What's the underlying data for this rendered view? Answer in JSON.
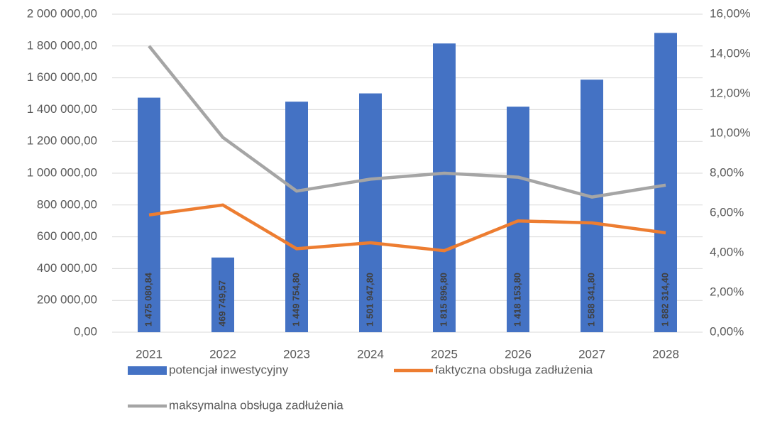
{
  "chart_data": {
    "type": "bar",
    "categories": [
      "2021",
      "2022",
      "2023",
      "2024",
      "2025",
      "2026",
      "2027",
      "2028"
    ],
    "series": [
      {
        "name": "potencjał inwestycyjny",
        "type": "bar",
        "color": "#4472c4",
        "values": [
          1475080.84,
          469749.57,
          1449754.8,
          1501947.8,
          1815896.8,
          1418153.8,
          1588341.8,
          1882314.4
        ],
        "value_labels": [
          "1 475 080,84",
          "469 749,57",
          "1 449 754,80",
          "1 501 947,80",
          "1 815 896,80",
          "1 418 153,80",
          "1 588 341,80",
          "1 882 314,40"
        ]
      },
      {
        "name": "faktyczna obsługa zadłużenia",
        "type": "line",
        "axis": "y2",
        "color": "#ed7d31",
        "values": [
          5.9,
          6.4,
          4.2,
          4.5,
          4.1,
          5.6,
          5.5,
          5.0
        ]
      },
      {
        "name": "maksymalna obsługa zadłużenia",
        "type": "line",
        "axis": "y2",
        "color": "#a5a5a5",
        "values": [
          14.4,
          9.8,
          7.1,
          7.7,
          8.0,
          7.8,
          6.8,
          7.4
        ]
      }
    ],
    "ylim": [
      0,
      2000000
    ],
    "yticks": [
      {
        "value": 0,
        "label": "0,00"
      },
      {
        "value": 200000,
        "label": "200 000,00"
      },
      {
        "value": 400000,
        "label": "400 000,00"
      },
      {
        "value": 600000,
        "label": "600 000,00"
      },
      {
        "value": 800000,
        "label": "800 000,00"
      },
      {
        "value": 1000000,
        "label": "1 000 000,00"
      },
      {
        "value": 1200000,
        "label": "1 200 000,00"
      },
      {
        "value": 1400000,
        "label": "1 400 000,00"
      },
      {
        "value": 1600000,
        "label": "1 600 000,00"
      },
      {
        "value": 1800000,
        "label": "1 800 000,00"
      },
      {
        "value": 2000000,
        "label": "2 000 000,00"
      }
    ],
    "y2lim": [
      0,
      16
    ],
    "y2ticks": [
      {
        "value": 0,
        "label": "0,00%"
      },
      {
        "value": 2,
        "label": "2,00%"
      },
      {
        "value": 4,
        "label": "4,00%"
      },
      {
        "value": 6,
        "label": "6,00%"
      },
      {
        "value": 8,
        "label": "8,00%"
      },
      {
        "value": 10,
        "label": "10,00%"
      },
      {
        "value": 12,
        "label": "12,00%"
      },
      {
        "value": 14,
        "label": "14,00%"
      },
      {
        "value": 16,
        "label": "16,00%"
      }
    ],
    "grid": true,
    "legend": "bottom"
  }
}
